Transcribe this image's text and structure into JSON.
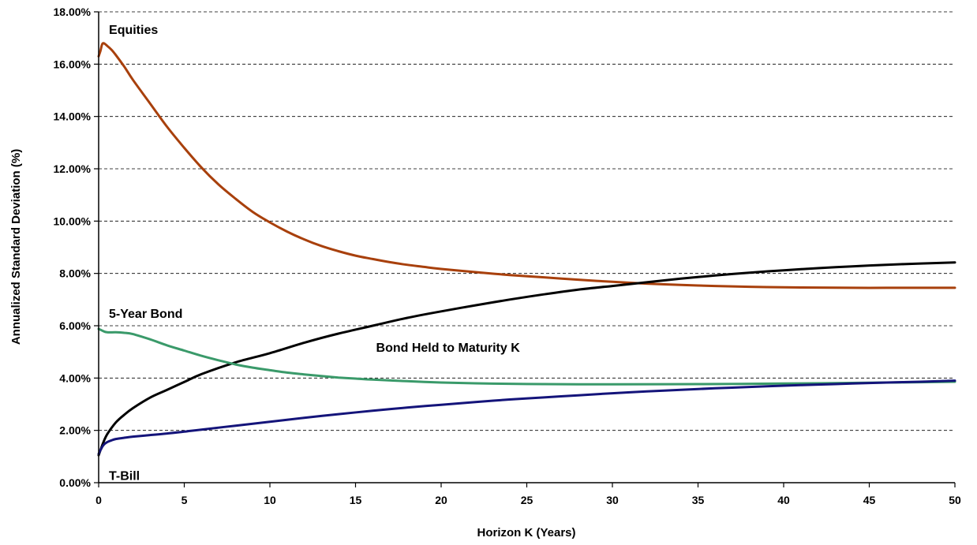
{
  "chart_data": {
    "type": "line",
    "title": "",
    "xlabel": "Horizon K (Years)",
    "ylabel": "Annualized Standard Deviation (%)",
    "xlim": [
      0,
      50
    ],
    "ylim": [
      0,
      18
    ],
    "x_ticks": [
      0,
      5,
      10,
      15,
      20,
      25,
      30,
      35,
      40,
      45,
      50
    ],
    "x_tick_labels": [
      "0",
      "5",
      "10",
      "15",
      "20",
      "25",
      "30",
      "35",
      "40",
      "45",
      "50"
    ],
    "y_ticks": [
      0,
      2,
      4,
      6,
      8,
      10,
      12,
      14,
      16,
      18
    ],
    "y_tick_labels": [
      "0.00%",
      "2.00%",
      "4.00%",
      "6.00%",
      "8.00%",
      "10.00%",
      "12.00%",
      "14.00%",
      "16.00%",
      "18.00%"
    ],
    "grid": "horizontal dashed",
    "legend": "none",
    "series": [
      {
        "name": "Equities",
        "color": "#a8400c",
        "x": [
          0,
          0.1,
          0.2,
          0.3,
          0.5,
          0.75,
          1,
          1.5,
          2,
          3,
          4,
          5,
          6,
          7,
          8,
          9,
          10,
          11,
          12,
          13,
          14,
          15,
          16,
          17,
          18,
          19,
          20,
          22,
          24,
          26,
          28,
          30,
          32,
          34,
          36,
          38,
          40,
          42,
          44,
          46,
          48,
          50
        ],
        "y": [
          16.3,
          16.5,
          16.75,
          16.8,
          16.7,
          16.55,
          16.35,
          15.9,
          15.4,
          14.5,
          13.6,
          12.8,
          12.05,
          11.4,
          10.85,
          10.35,
          9.95,
          9.6,
          9.3,
          9.05,
          8.85,
          8.68,
          8.55,
          8.43,
          8.33,
          8.25,
          8.17,
          8.05,
          7.94,
          7.85,
          7.76,
          7.68,
          7.61,
          7.56,
          7.52,
          7.49,
          7.47,
          7.46,
          7.45,
          7.45,
          7.45,
          7.45
        ]
      },
      {
        "name": "Bond Held to Maturity K",
        "color": "#000000",
        "x": [
          0,
          0.25,
          0.5,
          1,
          1.5,
          2,
          3,
          4,
          5,
          6,
          8,
          10,
          12,
          14,
          16,
          18,
          20,
          22,
          24,
          26,
          28,
          30,
          32,
          34,
          36,
          38,
          40,
          42,
          44,
          46,
          48,
          50
        ],
        "y": [
          1.05,
          1.5,
          1.85,
          2.3,
          2.6,
          2.85,
          3.25,
          3.55,
          3.85,
          4.15,
          4.6,
          4.95,
          5.35,
          5.7,
          6.0,
          6.3,
          6.55,
          6.78,
          7.0,
          7.2,
          7.38,
          7.52,
          7.66,
          7.8,
          7.92,
          8.03,
          8.12,
          8.2,
          8.27,
          8.33,
          8.38,
          8.42
        ]
      },
      {
        "name": "5-Year Bond",
        "color": "#3a9a6a",
        "x": [
          0,
          0.25,
          0.5,
          1,
          1.5,
          2,
          3,
          4,
          5,
          6,
          7,
          8,
          9,
          10,
          11,
          12,
          13,
          14,
          15,
          16,
          18,
          20,
          22,
          24,
          26,
          28,
          30,
          35,
          40,
          45,
          50
        ],
        "y": [
          5.88,
          5.8,
          5.75,
          5.75,
          5.73,
          5.68,
          5.48,
          5.25,
          5.05,
          4.85,
          4.68,
          4.52,
          4.4,
          4.3,
          4.21,
          4.14,
          4.08,
          4.02,
          3.98,
          3.94,
          3.88,
          3.83,
          3.8,
          3.78,
          3.77,
          3.76,
          3.76,
          3.77,
          3.79,
          3.82,
          3.86
        ]
      },
      {
        "name": "T-Bill",
        "color": "#14147a",
        "x": [
          0,
          0.15,
          0.3,
          0.5,
          0.75,
          1,
          1.5,
          2,
          3,
          4,
          5,
          6,
          8,
          10,
          12,
          14,
          16,
          18,
          20,
          22,
          24,
          26,
          28,
          30,
          32,
          34,
          36,
          38,
          40,
          42,
          44,
          46,
          48,
          50
        ],
        "y": [
          1.1,
          1.3,
          1.45,
          1.55,
          1.62,
          1.67,
          1.72,
          1.76,
          1.82,
          1.88,
          1.95,
          2.03,
          2.18,
          2.33,
          2.48,
          2.62,
          2.75,
          2.87,
          2.98,
          3.08,
          3.18,
          3.26,
          3.34,
          3.42,
          3.49,
          3.55,
          3.61,
          3.66,
          3.71,
          3.75,
          3.79,
          3.83,
          3.86,
          3.9
        ]
      }
    ],
    "annotations": [
      {
        "text": "Equities",
        "x": 0.6,
        "y": 17.3
      },
      {
        "text": "5-Year Bond",
        "x": 0.6,
        "y": 6.45
      },
      {
        "text": "Bond Held to Maturity K",
        "x": 16.2,
        "y": 5.15
      },
      {
        "text": "T-Bill",
        "x": 0.6,
        "y": 0.25
      }
    ]
  }
}
